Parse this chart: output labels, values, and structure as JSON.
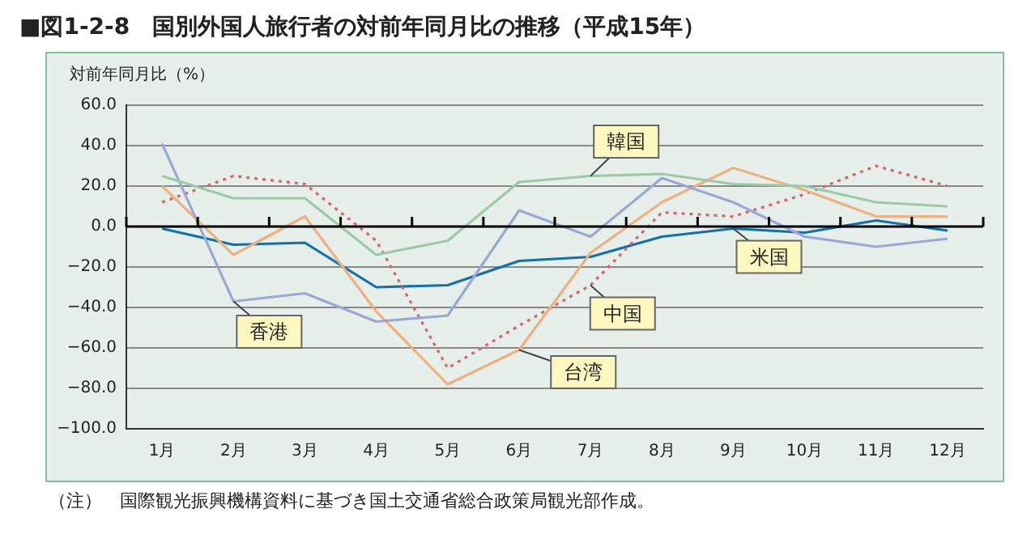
{
  "chart_data": {
    "type": "line",
    "title": "■図1-2-8　国別外国人旅行者の対前年同月比の推移（平成15年）",
    "ylabel": "対前年同月比（%）",
    "categories": [
      "1月",
      "2月",
      "3月",
      "4月",
      "5月",
      "6月",
      "7月",
      "8月",
      "9月",
      "10月",
      "11月",
      "12月"
    ],
    "series": [
      {
        "name": "韓国",
        "color": "#9ccaa8",
        "values": [
          25,
          14,
          14,
          -14,
          -7,
          22,
          25,
          26,
          21,
          20,
          12,
          10
        ]
      },
      {
        "name": "香港",
        "color": "#9aa8d8",
        "values": [
          41,
          -37,
          -33,
          -47,
          -44,
          8,
          -5,
          24,
          12,
          -5,
          -10,
          -6
        ]
      },
      {
        "name": "台湾",
        "color": "#f0b080",
        "values": [
          20,
          -14,
          5,
          -42,
          -78,
          -61,
          -13,
          12,
          29,
          18,
          5,
          5
        ]
      },
      {
        "name": "中国",
        "color": "#e06070",
        "line_style": "dotted",
        "values": [
          12,
          25,
          21,
          -7,
          -70,
          -49,
          -29,
          7,
          5,
          16,
          30,
          20
        ]
      },
      {
        "name": "米国",
        "color": "#1070b0",
        "values": [
          -1,
          -9,
          -8,
          -30,
          -29,
          -17,
          -15,
          -5,
          -1,
          -3,
          3,
          -2
        ]
      }
    ],
    "ylim": [
      -100,
      60
    ],
    "yticks": [
      {
        "value": -100,
        "label": "−100.0"
      },
      {
        "value": -80,
        "label": "−80.0"
      },
      {
        "value": -60,
        "label": "−60.0"
      },
      {
        "value": -40,
        "label": "−40.0"
      },
      {
        "value": -20,
        "label": "−20.0"
      },
      {
        "value": 0,
        "label": "0.0"
      },
      {
        "value": 20,
        "label": "20.0"
      },
      {
        "value": 40,
        "label": "40.0"
      },
      {
        "value": 60,
        "label": "60.0"
      }
    ],
    "grid": "y",
    "legend": false,
    "marker": "none",
    "line_style": "solid",
    "annotations": [
      "（注）　国際観光振興機構資料に基づき国土交通省総合政策局観光部作成。"
    ]
  }
}
